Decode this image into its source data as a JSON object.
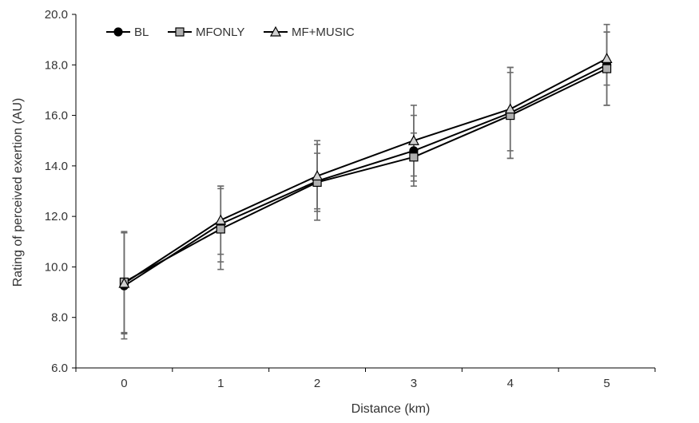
{
  "chart_data": {
    "type": "line",
    "title": "",
    "xlabel": "Distance (km)",
    "ylabel": "Rating of perceived exertion (AU)",
    "x": [
      0,
      1,
      2,
      3,
      4,
      5
    ],
    "x_tick_labels": [
      "0",
      "1",
      "2",
      "3",
      "4",
      "5"
    ],
    "ylim": [
      6.0,
      20.0
    ],
    "y_ticks": [
      6.0,
      8.0,
      10.0,
      12.0,
      14.0,
      16.0,
      18.0,
      20.0
    ],
    "y_tick_labels": [
      "6.0",
      "8.0",
      "10.0",
      "12.0",
      "14.0",
      "16.0",
      "18.0",
      "20.0"
    ],
    "grid": false,
    "legend_position": "top-left",
    "series": [
      {
        "name": "BL",
        "marker": "circle",
        "marker_fill": "#000000",
        "values": [
          9.25,
          11.7,
          13.4,
          14.6,
          16.1,
          18.0
        ],
        "error": [
          2.1,
          1.5,
          1.1,
          1.4,
          1.8,
          1.6
        ]
      },
      {
        "name": "MFONLY",
        "marker": "square",
        "marker_fill": "#b0b0b0",
        "values": [
          9.4,
          11.5,
          13.35,
          14.35,
          16.0,
          17.85
        ],
        "error": [
          2.0,
          1.6,
          1.5,
          0.95,
          1.7,
          1.45
        ]
      },
      {
        "name": "MF+MUSIC",
        "marker": "triangle",
        "marker_fill": "#d0d0d0",
        "values": [
          9.35,
          11.85,
          13.6,
          15.0,
          16.25,
          18.25
        ],
        "error": [
          2.0,
          1.35,
          1.4,
          1.4,
          1.65,
          1.05
        ]
      }
    ]
  }
}
